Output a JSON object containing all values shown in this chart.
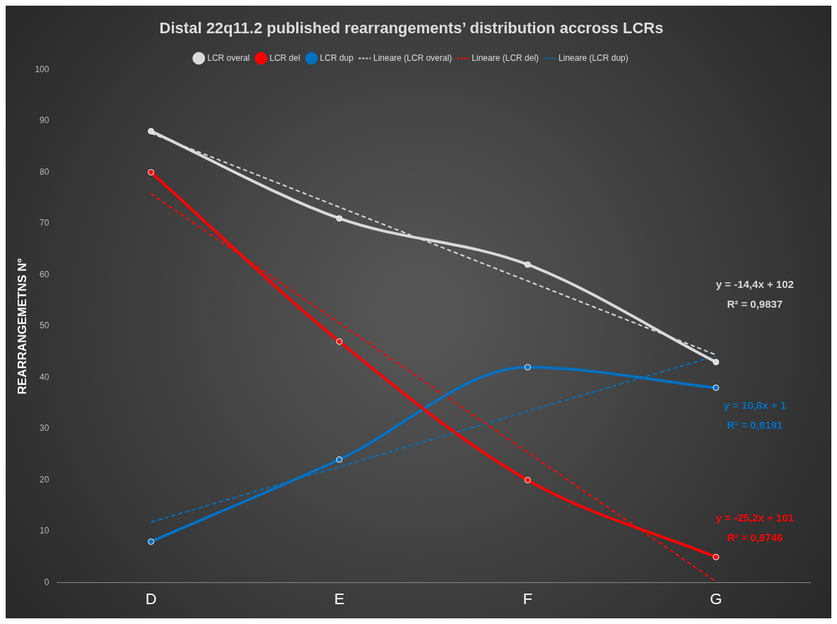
{
  "chart_data": {
    "type": "line",
    "title": "Distal 22q11.2 published rearrangements’ distribution accross LCRs",
    "ylabel": "REARRANGEMETNS N°",
    "categories": [
      "D",
      "E",
      "F",
      "G"
    ],
    "series": [
      {
        "name": "LCR overal",
        "color": "#d9d9d9",
        "values": [
          88,
          71,
          62,
          43
        ]
      },
      {
        "name": "LCR del",
        "color": "#ff0000",
        "values": [
          80,
          47,
          20,
          5
        ]
      },
      {
        "name": "LCR dup",
        "color": "#0070c0",
        "values": [
          8,
          24,
          42,
          38
        ]
      },
      {
        "name": "Lineare (LCR overal)",
        "color": "#d9d9d9",
        "values": [
          87.6,
          73.2,
          58.8,
          44.4
        ],
        "line_style": "dashed",
        "marker": "none"
      },
      {
        "name": "Lineare (LCR del)",
        "color": "#ff0000",
        "values": [
          75.8,
          50.6,
          25.4,
          0.2
        ],
        "line_style": "dashed",
        "marker": "none"
      },
      {
        "name": "Lineare (LCR dup)",
        "color": "#0070c0",
        "values": [
          11.8,
          22.6,
          33.4,
          44.2
        ],
        "line_style": "dashed",
        "marker": "none"
      }
    ],
    "annotations": [
      "y = -14,4x + 102",
      "R² = 0,9837",
      "y = 10,8x + 1",
      "R² = 0,8191",
      "y = -25,2x + 101",
      "R² = 0,9746"
    ],
    "ylim": [
      0,
      100
    ],
    "yticks": [
      0,
      10,
      20,
      30,
      40,
      50,
      60,
      70,
      80,
      90,
      100
    ],
    "grid": false,
    "legend": "top",
    "marker": "circle",
    "line_style": "solid"
  }
}
